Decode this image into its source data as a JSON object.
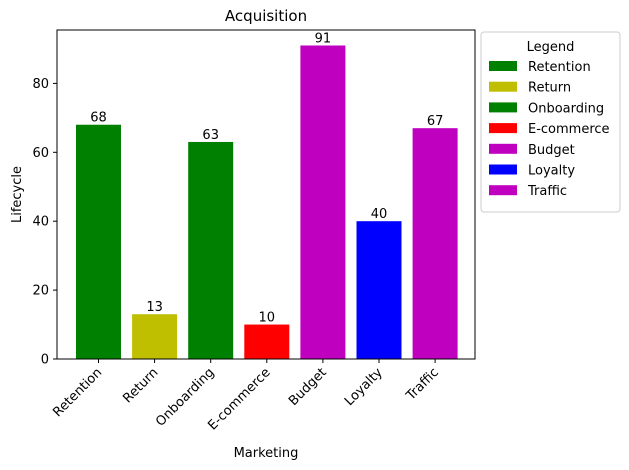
{
  "chart_data": {
    "type": "bar",
    "title": "Acquisition",
    "xlabel": "Marketing",
    "ylabel": "Lifecycle",
    "categories": [
      "Retention",
      "Return",
      "Onboarding",
      "E-commerce",
      "Budget",
      "Loyalty",
      "Traffic"
    ],
    "values": [
      68,
      13,
      63,
      10,
      91,
      40,
      67
    ],
    "colors": [
      "#008000",
      "#bfbf00",
      "#008000",
      "#ff0000",
      "#bf00bf",
      "#0000ff",
      "#bf00bf"
    ],
    "ylim": [
      0,
      95.5
    ],
    "yticks": [
      0,
      20,
      40,
      60,
      80
    ],
    "grid": false,
    "legend": {
      "title": "Legend",
      "placement": "outside-right",
      "entries": [
        "Retention",
        "Return",
        "Onboarding",
        "E-commerce",
        "Budget",
        "Loyalty",
        "Traffic"
      ]
    }
  }
}
